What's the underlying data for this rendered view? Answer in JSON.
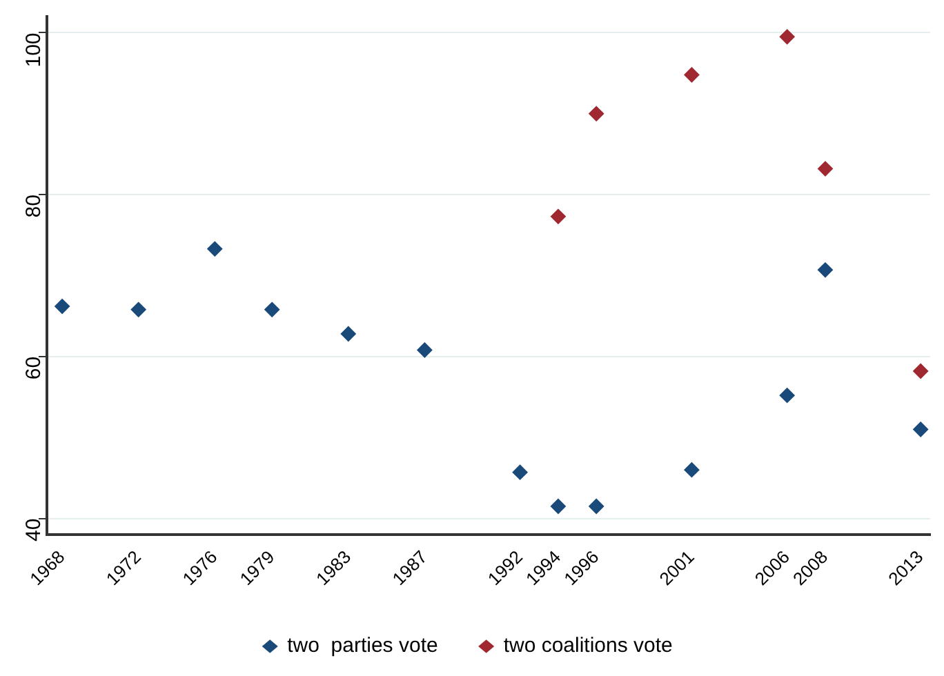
{
  "chart_data": {
    "type": "scatter",
    "xlim": [
      1967.2,
      2013.5
    ],
    "xticks": [
      1968,
      1972,
      1976,
      1979,
      1983,
      1987,
      1992,
      1994,
      1996,
      2001,
      2006,
      2008,
      2013
    ],
    "ylim": [
      38,
      102
    ],
    "yticks": [
      40,
      60,
      80,
      100
    ],
    "grid": "y",
    "legend": "bottom",
    "marker": "diamond",
    "series": [
      {
        "name": "two  parties vote",
        "color": "#1a4a7a",
        "x": [
          1968,
          1972,
          1976,
          1979,
          1983,
          1987,
          1992,
          1994,
          1996,
          2001,
          2006,
          2008,
          2013
        ],
        "values": [
          66.2,
          65.8,
          73.3,
          65.8,
          62.8,
          60.8,
          45.7,
          41.5,
          41.5,
          46,
          55.2,
          70.7,
          51
        ]
      },
      {
        "name": "two coalitions vote",
        "color": "#a02830",
        "x": [
          1994,
          1996,
          2001,
          2006,
          2008,
          2013
        ],
        "values": [
          77.3,
          90,
          94.8,
          99.5,
          83.2,
          58.2
        ]
      }
    ]
  }
}
